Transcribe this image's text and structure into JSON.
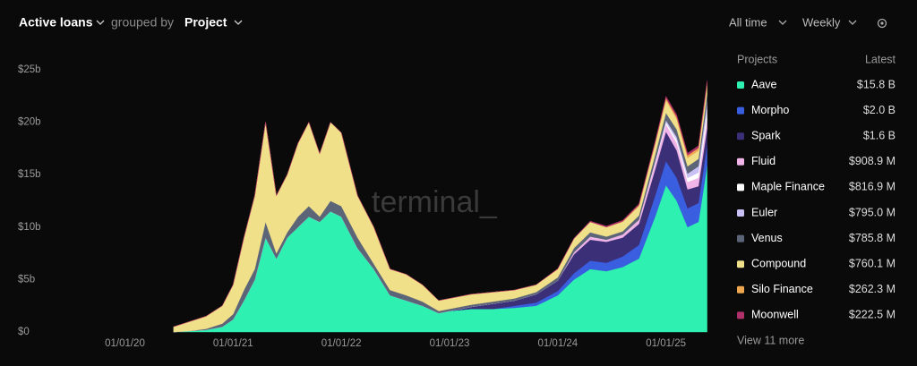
{
  "chart_data": {
    "type": "stacked-area",
    "title": "Active loans",
    "group_prefix": "grouped by",
    "group": "Project",
    "range_filter": "All time",
    "interval": "Weekly",
    "watermark": "terminal_",
    "legend_header": "Projects",
    "legend_value_header": "Latest",
    "more": "View 11 more",
    "x": [
      2020.45,
      2020.6,
      2020.75,
      2020.9,
      2021.0,
      2021.1,
      2021.2,
      2021.3,
      2021.4,
      2021.5,
      2021.6,
      2021.7,
      2021.8,
      2021.9,
      2022.0,
      2022.15,
      2022.3,
      2022.45,
      2022.6,
      2022.75,
      2022.9,
      2023.0,
      2023.2,
      2023.4,
      2023.6,
      2023.8,
      2024.0,
      2024.15,
      2024.3,
      2024.45,
      2024.6,
      2024.75,
      2024.9,
      2025.0,
      2025.1,
      2025.2,
      2025.3,
      2025.38
    ],
    "xlim": [
      2019.45,
      2025.4
    ],
    "xticks": [
      {
        "value": 2020,
        "label": "01/01/20"
      },
      {
        "value": 2021,
        "label": "01/01/21"
      },
      {
        "value": 2022,
        "label": "01/01/22"
      },
      {
        "value": 2023,
        "label": "01/01/23"
      },
      {
        "value": 2024,
        "label": "01/01/24"
      },
      {
        "value": 2025,
        "label": "01/01/25"
      }
    ],
    "ylim": [
      0,
      25
    ],
    "yticks": [
      {
        "value": 0,
        "label": "$0"
      },
      {
        "value": 5,
        "label": "$5b"
      },
      {
        "value": 10,
        "label": "$10b"
      },
      {
        "value": 15,
        "label": "$15b"
      },
      {
        "value": 20,
        "label": "$20b"
      },
      {
        "value": 25,
        "label": "$25b"
      }
    ],
    "series": [
      {
        "name": "Aave",
        "color": "#2ef0b0",
        "latest": "$15.8 B",
        "values": [
          0,
          0.1,
          0.2,
          0.5,
          1.2,
          3,
          5,
          9,
          7,
          9,
          10,
          11,
          10.5,
          11.5,
          11,
          8,
          6,
          3.5,
          3,
          2.5,
          1.8,
          2,
          2.2,
          2.2,
          2.3,
          2.5,
          3.5,
          5,
          6,
          5.8,
          6.2,
          7,
          11,
          14,
          12.5,
          10,
          10.5,
          15.8
        ]
      },
      {
        "name": "Morpho",
        "color": "#3a5ee0",
        "latest": "$2.0 B",
        "values": [
          0,
          0,
          0,
          0,
          0,
          0,
          0,
          0,
          0,
          0,
          0,
          0,
          0,
          0,
          0,
          0,
          0,
          0,
          0,
          0,
          0,
          0,
          0,
          0,
          0.2,
          0.3,
          0.4,
          0.6,
          0.8,
          0.8,
          1,
          1.3,
          2,
          2.3,
          2.2,
          1.8,
          1.8,
          2.0
        ]
      },
      {
        "name": "Spark",
        "color": "#3b2f78",
        "latest": "$1.6 B",
        "values": [
          0,
          0,
          0,
          0,
          0,
          0,
          0,
          0,
          0,
          0,
          0,
          0,
          0,
          0,
          0,
          0,
          0,
          0,
          0,
          0,
          0,
          0,
          0.2,
          0.5,
          0.5,
          0.8,
          1,
          1.8,
          2,
          2,
          1.8,
          2,
          2.5,
          2.8,
          2.6,
          1.8,
          1.6,
          1.6
        ]
      },
      {
        "name": "Fluid",
        "color": "#f0b4e8",
        "latest": "$908.9 M",
        "values": [
          0,
          0,
          0,
          0,
          0,
          0,
          0,
          0,
          0,
          0,
          0,
          0,
          0,
          0,
          0,
          0,
          0,
          0,
          0,
          0,
          0,
          0,
          0,
          0,
          0,
          0,
          0,
          0.2,
          0.3,
          0.2,
          0.3,
          0.4,
          0.6,
          0.7,
          0.7,
          0.7,
          0.8,
          0.9089
        ]
      },
      {
        "name": "Maple Finance",
        "color": "#ffffff",
        "latest": "$816.9 M",
        "values": [
          0,
          0,
          0,
          0,
          0,
          0,
          0,
          0,
          0,
          0,
          0,
          0,
          0,
          0,
          0,
          0,
          0,
          0,
          0,
          0,
          0,
          0,
          0,
          0,
          0,
          0,
          0,
          0,
          0,
          0,
          0,
          0,
          0.1,
          0.2,
          0.3,
          0.4,
          0.5,
          0.8169
        ]
      },
      {
        "name": "Euler",
        "color": "#c9c0f5",
        "latest": "$795.0 M",
        "values": [
          0,
          0,
          0,
          0,
          0,
          0,
          0,
          0,
          0,
          0,
          0,
          0,
          0,
          0,
          0,
          0,
          0,
          0,
          0,
          0,
          0,
          0,
          0,
          0,
          0,
          0,
          0,
          0,
          0,
          0,
          0,
          0,
          0.1,
          0.2,
          0.3,
          0.4,
          0.6,
          0.795
        ]
      },
      {
        "name": "Venus",
        "color": "#5c6478",
        "latest": "$785.8 M",
        "values": [
          0,
          0,
          0.1,
          0.3,
          0.5,
          1,
          1,
          1.5,
          0.5,
          0.5,
          1,
          1,
          0.5,
          1,
          1,
          1,
          0.5,
          0.5,
          0.5,
          0.4,
          0.2,
          0.2,
          0.2,
          0.2,
          0.2,
          0.2,
          0.3,
          0.4,
          0.4,
          0.3,
          0.3,
          0.4,
          0.6,
          0.7,
          0.7,
          0.7,
          0.7,
          0.7858
        ]
      },
      {
        "name": "Compound",
        "color": "#f0e08a",
        "latest": "$760.1 M",
        "values": [
          0.5,
          0.9,
          1.2,
          1.7,
          2.8,
          5,
          7,
          9.5,
          5.5,
          5.5,
          7,
          8,
          6,
          7.5,
          7,
          4,
          3.5,
          2,
          2,
          1.6,
          1,
          1,
          1,
          0.9,
          0.8,
          0.7,
          0.8,
          0.9,
          1,
          0.9,
          0.9,
          0.9,
          1,
          1.2,
          1,
          0.8,
          0.8,
          0.7601
        ]
      },
      {
        "name": "Silo Finance",
        "color": "#f0a850",
        "latest": "$262.3 M",
        "values": [
          0,
          0,
          0,
          0,
          0,
          0,
          0,
          0,
          0,
          0,
          0,
          0,
          0,
          0,
          0,
          0,
          0,
          0,
          0,
          0,
          0,
          0,
          0,
          0,
          0,
          0,
          0,
          0,
          0,
          0,
          0.05,
          0.1,
          0.15,
          0.2,
          0.2,
          0.25,
          0.25,
          0.2623
        ]
      },
      {
        "name": "Moonwell",
        "color": "#b0306a",
        "latest": "$222.5 M",
        "values": [
          0,
          0,
          0,
          0,
          0,
          0,
          0,
          0,
          0,
          0,
          0,
          0,
          0,
          0,
          0,
          0,
          0,
          0,
          0,
          0,
          0,
          0,
          0,
          0,
          0,
          0,
          0.05,
          0.05,
          0.08,
          0.1,
          0.1,
          0.12,
          0.15,
          0.18,
          0.2,
          0.2,
          0.21,
          0.2225
        ]
      }
    ]
  }
}
